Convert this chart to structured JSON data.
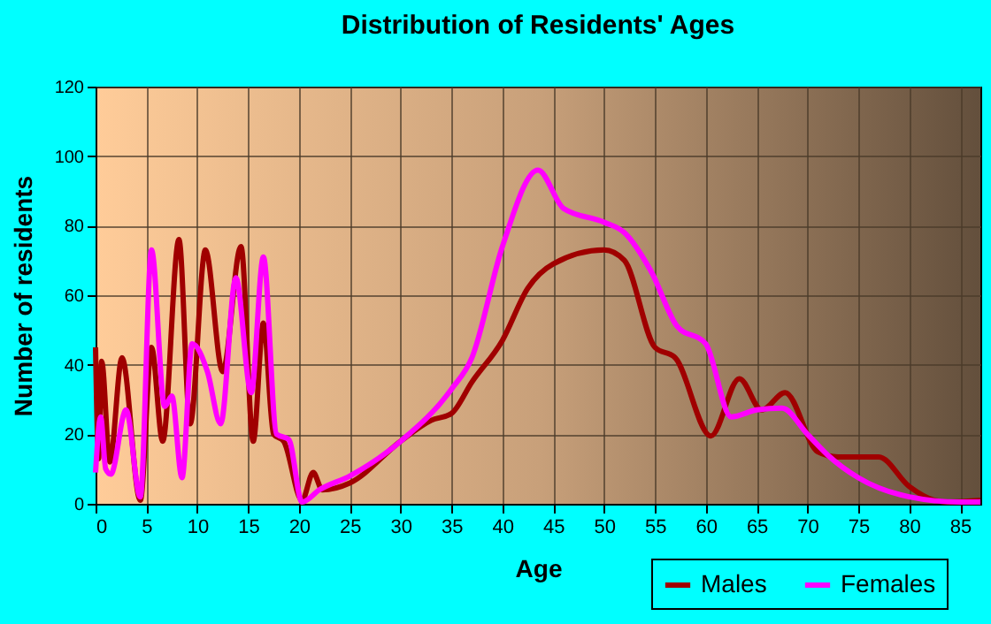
{
  "chart_data": {
    "type": "line",
    "title": "Distribution of Residents' Ages",
    "xlabel": "Age",
    "ylabel": "Number of residents",
    "xlim": [
      0,
      87
    ],
    "xticks": [
      0,
      5,
      10,
      15,
      20,
      25,
      30,
      35,
      40,
      45,
      50,
      55,
      60,
      65,
      70,
      75,
      80,
      85
    ],
    "ylim": [
      0,
      120
    ],
    "yticks": [
      0,
      20,
      40,
      60,
      80,
      100,
      120
    ],
    "grid": true,
    "legend": "bottom right",
    "marker": "none",
    "line_style": "solid",
    "series": [
      {
        "name": "Males",
        "color": "#a00000",
        "x": [
          0,
          0.3,
          0.6,
          1.4,
          2.6,
          4.4,
          5.5,
          6.6,
          8.2,
          9.3,
          10.8,
          12.5,
          14.3,
          15.5,
          16.5,
          17.5,
          18.5,
          20.3,
          21.4,
          22.3,
          25,
          30,
          33,
          35,
          37,
          40,
          42.5,
          45,
          50,
          52,
          55,
          57,
          60.5,
          63.3,
          65.5,
          67.8,
          71,
          73,
          77,
          80,
          82.5,
          84,
          87
        ],
        "values": [
          45,
          13,
          41,
          12,
          42,
          1,
          45,
          18,
          76,
          23,
          73,
          38,
          74,
          18,
          52,
          20,
          18,
          1,
          9,
          4,
          6,
          18,
          24,
          26,
          35,
          47,
          62,
          69,
          73,
          70,
          45,
          42,
          19.5,
          36,
          27,
          32,
          15,
          13.5,
          13.5,
          5,
          1,
          0.5,
          1
        ]
      },
      {
        "name": "Females",
        "color": "#ff00ff",
        "x": [
          0,
          0.5,
          1,
          1.5,
          3,
          4.4,
          5.5,
          6.8,
          7.5,
          8.5,
          9.5,
          11,
          12.3,
          13.8,
          15.3,
          16.5,
          17.8,
          19,
          20.3,
          22,
          25,
          30,
          35,
          37,
          40,
          43.5,
          46,
          50,
          52,
          54.6,
          57.2,
          60,
          62.5,
          65,
          67.5,
          70,
          72,
          75,
          80,
          85,
          87
        ],
        "values": [
          9,
          25,
          10,
          8.5,
          27,
          2,
          73,
          28,
          31,
          7.5,
          46,
          38,
          23,
          65,
          32,
          71,
          20,
          18.5,
          0.5,
          4,
          8,
          18,
          33,
          42,
          74,
          96,
          85,
          81,
          78,
          67,
          51,
          46,
          25,
          27,
          27.5,
          20,
          14,
          7.5,
          2,
          0.5,
          0.5
        ]
      }
    ]
  }
}
